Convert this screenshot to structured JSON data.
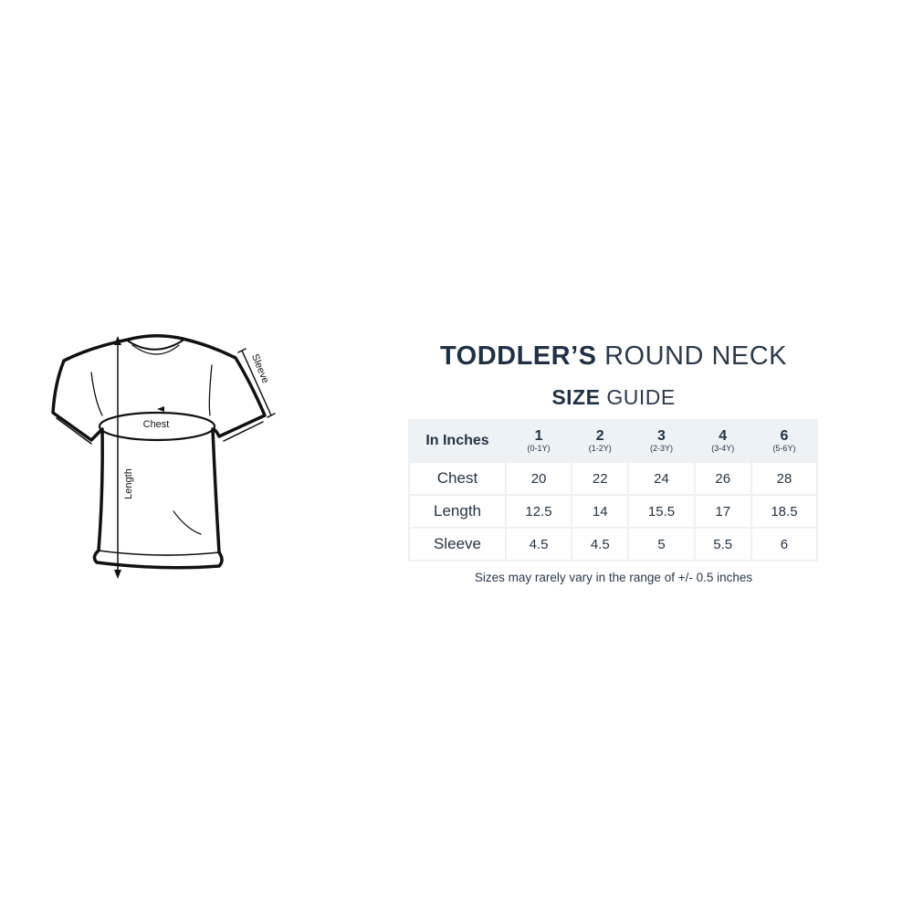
{
  "title": {
    "bold": "TODDLER’S",
    "light": "ROUND NECK"
  },
  "subtitle": {
    "bold": "SIZE",
    "light": "GUIDE"
  },
  "diagram_labels": {
    "chest": "Chest",
    "length": "Length",
    "sleeve": "Sleeve"
  },
  "table": {
    "corner": "In Inches",
    "sizes": [
      {
        "size": "1",
        "age": "(0-1Y)"
      },
      {
        "size": "2",
        "age": "(1-2Y)"
      },
      {
        "size": "3",
        "age": "(2-3Y)"
      },
      {
        "size": "4",
        "age": "(3-4Y)"
      },
      {
        "size": "6",
        "age": "(5-6Y)"
      }
    ],
    "rows": [
      {
        "label": "Chest",
        "values": [
          "20",
          "22",
          "24",
          "26",
          "28"
        ]
      },
      {
        "label": "Length",
        "values": [
          "12.5",
          "14",
          "15.5",
          "17",
          "18.5"
        ]
      },
      {
        "label": "Sleeve",
        "values": [
          "4.5",
          "4.5",
          "5",
          "5.5",
          "6"
        ]
      }
    ]
  },
  "note": "Sizes may rarely vary in the range of +/- 0.5 inches"
}
